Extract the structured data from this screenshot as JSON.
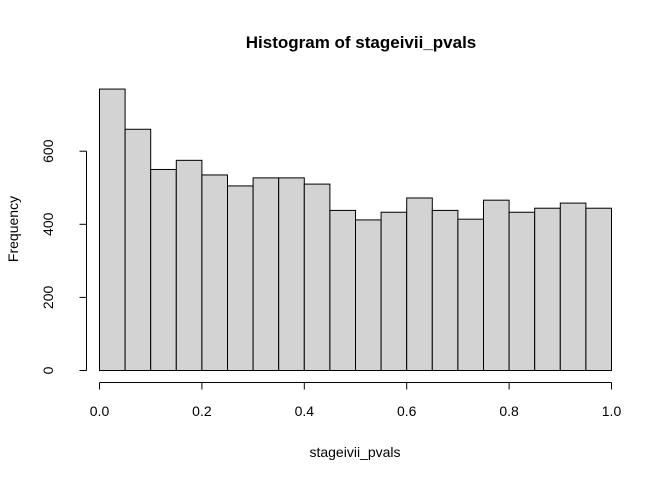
{
  "chart_data": {
    "type": "bar",
    "title": "Histogram of stageivii_pvals",
    "xlabel": "stageivii_pvals",
    "ylabel": "Frequency",
    "xlim": [
      0,
      1
    ],
    "ylim": [
      0,
      780
    ],
    "bin_edges": [
      0.0,
      0.05,
      0.1,
      0.15,
      0.2,
      0.25,
      0.3,
      0.35,
      0.4,
      0.45,
      0.5,
      0.55,
      0.6,
      0.65,
      0.7,
      0.75,
      0.8,
      0.85,
      0.9,
      0.95,
      1.0
    ],
    "values": [
      770,
      660,
      550,
      575,
      535,
      505,
      527,
      527,
      510,
      438,
      412,
      433,
      472,
      438,
      414,
      466,
      433,
      444,
      458,
      444
    ],
    "x_ticks": [
      0.0,
      0.2,
      0.4,
      0.6,
      0.8,
      1.0
    ],
    "x_tick_labels": [
      "0.0",
      "0.2",
      "0.4",
      "0.6",
      "0.8",
      "1.0"
    ],
    "y_ticks": [
      0,
      200,
      400,
      600
    ],
    "y_tick_labels": [
      "0",
      "200",
      "400",
      "600"
    ],
    "grid": false,
    "bar_color": "#d3d3d3",
    "edge_color": "#000000"
  }
}
